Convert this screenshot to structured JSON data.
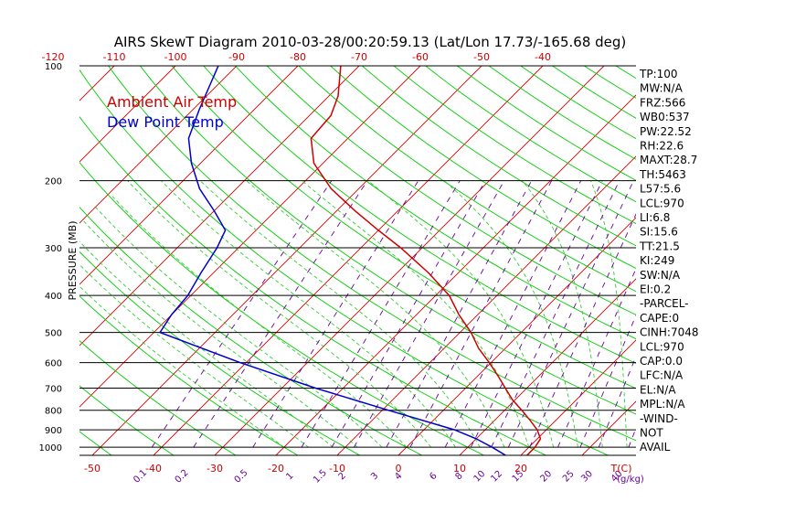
{
  "chart_data": {
    "type": "skewt",
    "title": "AIRS SkewT Diagram 2010-03-28/00:20:59.13 (Lat/Lon 17.73/-165.68 deg)",
    "ylabel": "PRESSURE (MB)",
    "pressure_range": [
      1050,
      100
    ],
    "log_pressure_axis": true,
    "pressure_ticks": [
      100,
      200,
      300,
      400,
      500,
      600,
      700,
      800,
      900,
      1000
    ],
    "top_temp_ticks": [
      -120,
      -110,
      -100,
      -90,
      -80,
      -70,
      -60,
      -50,
      -40
    ],
    "bottom_temp_ticks": [
      -50,
      -40,
      -30,
      -20,
      -10,
      0,
      10,
      20
    ],
    "bottom_temp_unit": "T(C)",
    "mixing_ratio_labels": [
      "0.1",
      "0.2",
      "0.5",
      "1",
      "1.5",
      "2",
      "3",
      "4",
      "6",
      "8",
      "10",
      "12",
      "15",
      "20",
      "25",
      "30",
      "40"
    ],
    "mixing_ratio_unit": "(g/kg)",
    "legend": [
      {
        "name": "Ambient Air Temp",
        "color": "#cc0000"
      },
      {
        "name": "Dew Point Temp",
        "color": "#0000cc"
      }
    ],
    "series": [
      {
        "name": "Ambient Air Temp",
        "color": "#cc0000",
        "points": [
          [
            1050,
            21.0
          ],
          [
            1000,
            21.0
          ],
          [
            950,
            20.5
          ],
          [
            900,
            18.5
          ],
          [
            850,
            15.8
          ],
          [
            800,
            12.8
          ],
          [
            750,
            9.5
          ],
          [
            700,
            6.5
          ],
          [
            650,
            3.3
          ],
          [
            600,
            -0.3
          ],
          [
            550,
            -4.4
          ],
          [
            500,
            -8.2
          ],
          [
            450,
            -13.0
          ],
          [
            400,
            -17.8
          ],
          [
            350,
            -24.7
          ],
          [
            300,
            -33.5
          ],
          [
            270,
            -40.0
          ],
          [
            240,
            -47.0
          ],
          [
            210,
            -54.5
          ],
          [
            180,
            -61.5
          ],
          [
            155,
            -66.0
          ],
          [
            135,
            -66.5
          ],
          [
            120,
            -68.5
          ],
          [
            100,
            -73.0
          ]
        ]
      },
      {
        "name": "Dew Point Temp",
        "color": "#0000cc",
        "points": [
          [
            1050,
            17.5
          ],
          [
            1000,
            14.0
          ],
          [
            950,
            10.0
          ],
          [
            900,
            5.0
          ],
          [
            800,
            -9.0
          ],
          [
            700,
            -24.5
          ],
          [
            600,
            -41.0
          ],
          [
            500,
            -59.0
          ],
          [
            450,
            -60.0
          ],
          [
            400,
            -60.5
          ],
          [
            350,
            -62.0
          ],
          [
            300,
            -63.5
          ],
          [
            270,
            -65.0
          ],
          [
            240,
            -70.0
          ],
          [
            210,
            -76.0
          ],
          [
            180,
            -81.5
          ],
          [
            155,
            -86.0
          ],
          [
            130,
            -89.0
          ],
          [
            100,
            -93.0
          ]
        ]
      }
    ],
    "stats": [
      "TP:100",
      "MW:N/A",
      "FRZ:566",
      "WB0:537",
      "PW:22.52",
      "RH:22.6",
      "MAXT:28.7",
      "TH:5463",
      "L57:5.6",
      "LCL:970",
      "LI:6.8",
      "SI:15.6",
      "TT:21.5",
      "KI:249",
      "SW:N/A",
      "EI:0.2",
      "-PARCEL-",
      "CAPE:0",
      "CINH:7048",
      "LCL:970",
      "CAP:0.0",
      "LFC:N/A",
      "EL:N/A",
      "MPL:N/A",
      "-WIND-",
      "NOT",
      "AVAIL"
    ],
    "colors": {
      "isotherm": "#cc0000",
      "dry_adiabat": "#00cc00",
      "moist_adiabat": "#33cc33",
      "mixing_ratio": "#660099",
      "isobar": "#000000"
    }
  }
}
